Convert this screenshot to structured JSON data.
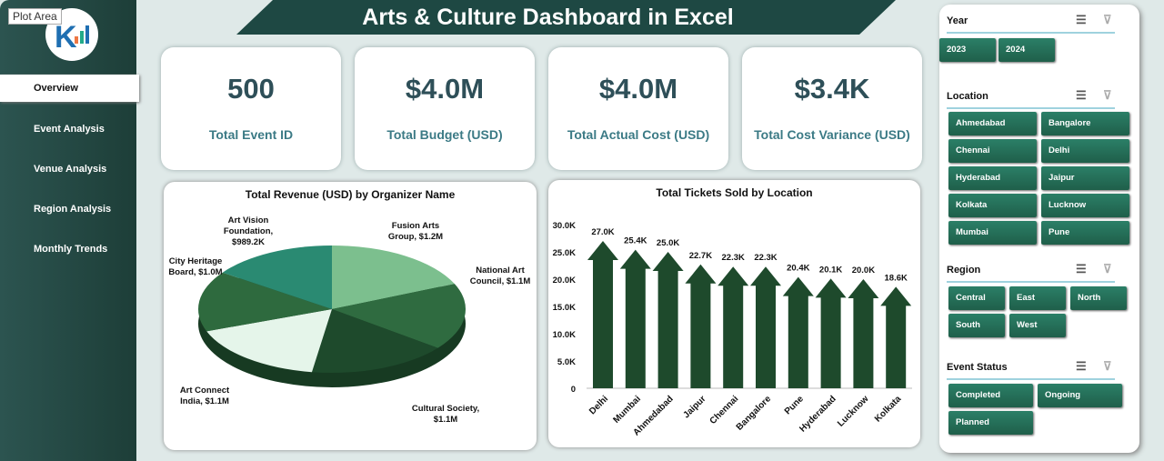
{
  "tooltip": "Plot Area",
  "title": "Arts & Culture Dashboard in Excel",
  "nav": [
    "Overview",
    "Event Analysis",
    "Venue Analysis",
    "Region Analysis",
    "Monthly Trends"
  ],
  "kpis": [
    {
      "value": "500",
      "label": "Total Event ID"
    },
    {
      "value": "$4.0M",
      "label": "Total Budget (USD)"
    },
    {
      "value": "$4.0M",
      "label": "Total Actual Cost (USD)"
    },
    {
      "value": "$3.4K",
      "label": "Total Cost Variance (USD)"
    }
  ],
  "slicers": {
    "year": {
      "title": "Year",
      "items": [
        "2023",
        "2024"
      ]
    },
    "location": {
      "title": "Location",
      "items": [
        "Ahmedabad",
        "Bangalore",
        "Chennai",
        "Delhi",
        "Hyderabad",
        "Jaipur",
        "Kolkata",
        "Lucknow",
        "Mumbai",
        "Pune"
      ]
    },
    "region": {
      "title": "Region",
      "items": [
        "Central",
        "East",
        "North",
        "South",
        "West"
      ]
    },
    "status": {
      "title": "Event Status",
      "items": [
        "Completed",
        "Ongoing",
        "Planned"
      ]
    }
  },
  "chart_data": [
    {
      "type": "pie",
      "title": "Total Revenue (USD) by Organizer Name",
      "labels": [
        "Fusion Arts Group",
        "National Art Council",
        "Cultural Society",
        "Art Connect India",
        "City Heritage Board",
        "Art Vision Foundation"
      ],
      "values": [
        1.2,
        1.1,
        1.1,
        1.1,
        1.0,
        0.9892
      ],
      "data_labels": [
        "Fusion Arts Group, $1.2M",
        "National Art Council, $1.1M",
        "Cultural Society, $1.1M",
        "Art Connect India, $1.1M",
        "City Heritage Board, $1.0M",
        "Art Vision Foundation, $989.2K"
      ],
      "colors": [
        "#7cbf8e",
        "#2f6b40",
        "#1e4a2c",
        "#e5f5ea",
        "#2e6a3e",
        "#2a8a72"
      ]
    },
    {
      "type": "bar",
      "title": "Total Tickets Sold by Location",
      "categories": [
        "Delhi",
        "Mumbai",
        "Ahmedabad",
        "Jaipur",
        "Chennai",
        "Bangalore",
        "Pune",
        "Hyderabad",
        "Lucknow",
        "Kolkata"
      ],
      "values": [
        27.0,
        25.4,
        25.0,
        22.7,
        22.3,
        22.3,
        20.4,
        20.1,
        20.0,
        18.6
      ],
      "data_labels": [
        "27.0K",
        "25.4K",
        "25.0K",
        "22.7K",
        "22.3K",
        "22.3K",
        "20.4K",
        "20.1K",
        "20.0K",
        "18.6K"
      ],
      "yticks": [
        "0",
        "5.0K",
        "10.0K",
        "15.0K",
        "20.0K",
        "25.0K",
        "30.0K"
      ],
      "ylim": [
        0,
        30
      ],
      "unit": "K",
      "color": "#1e4a2c"
    }
  ]
}
